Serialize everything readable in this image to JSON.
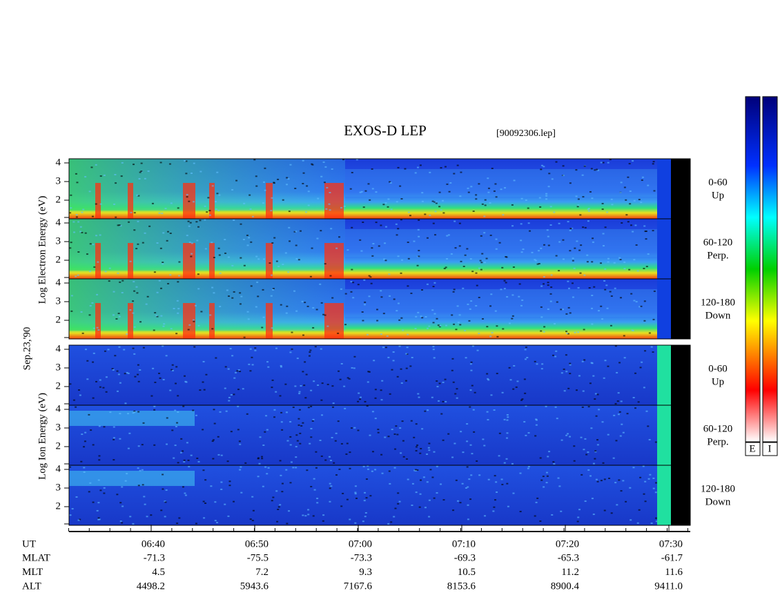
{
  "title": "EXOS-D LEP",
  "file": "[90092306.lep]",
  "date_label": "Sep.23,'90",
  "electron": {
    "axis_label": "Log Electron Energy (eV)",
    "panels": [
      {
        "angle": "0-60",
        "dir": "Up"
      },
      {
        "angle": "60-120",
        "dir": "Perp."
      },
      {
        "angle": "120-180",
        "dir": "Down"
      }
    ]
  },
  "ion": {
    "axis_label": "Log Ion Energy (eV)",
    "panels": [
      {
        "angle": "0-60",
        "dir": "Up"
      },
      {
        "angle": "60-120",
        "dir": "Perp."
      },
      {
        "angle": "120-180",
        "dir": "Down"
      }
    ]
  },
  "yticks": [
    "4",
    "3",
    "2"
  ],
  "time_axis": {
    "rows": [
      {
        "name": "UT",
        "values": [
          "06:40",
          "06:50",
          "07:00",
          "07:10",
          "07:20",
          "07:30"
        ]
      },
      {
        "name": "MLAT",
        "values": [
          "-71.3",
          "-75.5",
          "-73.3",
          "-69.3",
          "-65.3",
          "-61.7"
        ]
      },
      {
        "name": "MLT",
        "values": [
          "4.5",
          "7.2",
          "9.3",
          "10.5",
          "11.2",
          "11.6"
        ]
      },
      {
        "name": "ALT",
        "values": [
          "4498.2",
          "5943.6",
          "7167.6",
          "8153.6",
          "8900.4",
          "9411.0"
        ]
      }
    ]
  },
  "colorbars": [
    "E",
    "I"
  ]
}
